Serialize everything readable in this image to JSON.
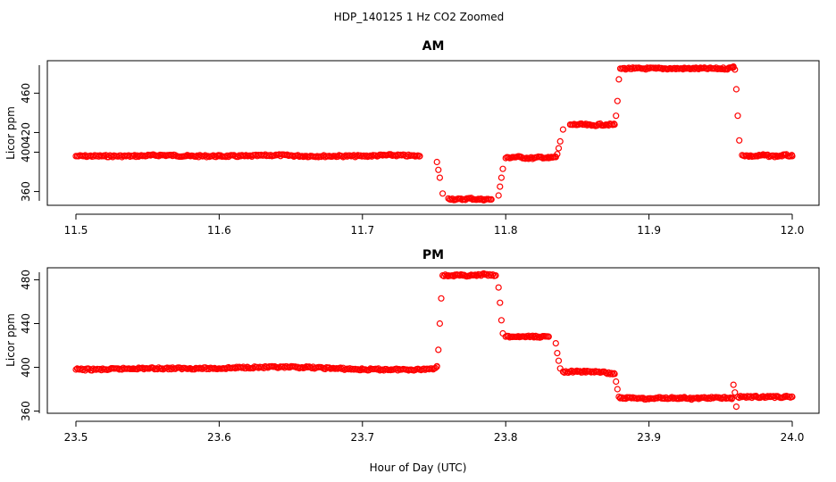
{
  "title": "HDP_140125  1 Hz CO2 Zoomed",
  "xlabel": "Hour of Day (UTC)",
  "colors": {
    "points": "#ff0000",
    "axes": "#000000",
    "background": "#ffffff"
  },
  "chart_data": [
    {
      "type": "scatter",
      "title": "AM",
      "ylabel": "Licor ppm",
      "xlim": [
        11.5,
        12.0
      ],
      "ylim": [
        346,
        493
      ],
      "xticks": [
        "11.5",
        "11.6",
        "11.7",
        "11.8",
        "11.9",
        "12.0"
      ],
      "yticks": [
        "360",
        "400",
        "420",
        "460"
      ],
      "grid": false,
      "legend": "none",
      "series": [
        {
          "x": [
            11.5,
            11.52,
            11.54,
            11.56,
            11.58,
            11.6,
            11.62,
            11.64,
            11.66,
            11.68,
            11.7,
            11.72,
            11.74,
            11.752,
            11.753,
            11.754,
            11.756,
            11.76,
            11.765,
            11.77,
            11.775,
            11.78,
            11.785,
            11.79,
            11.795,
            11.796,
            11.797,
            11.798,
            11.8,
            11.805,
            11.81,
            11.815,
            11.82,
            11.825,
            11.83,
            11.835,
            11.836,
            11.837,
            11.838,
            11.84,
            11.845,
            11.85,
            11.855,
            11.86,
            11.865,
            11.87,
            11.876,
            11.877,
            11.878,
            11.879,
            11.88,
            11.885,
            11.89,
            11.895,
            11.9,
            11.905,
            11.91,
            11.915,
            11.92,
            11.925,
            11.93,
            11.935,
            11.94,
            11.945,
            11.95,
            11.955,
            11.958,
            11.959,
            11.96,
            11.961,
            11.962,
            11.963,
            11.965,
            11.97,
            11.975,
            11.98,
            11.985,
            11.99,
            11.995,
            12.0
          ],
          "y": [
            396,
            396,
            396,
            397,
            396,
            396,
            396,
            397,
            396,
            396,
            396,
            397,
            396,
            390,
            382,
            374,
            358,
            353,
            352,
            352,
            353,
            352,
            352,
            352,
            356,
            365,
            374,
            383,
            394,
            395,
            395,
            394,
            394,
            395,
            394,
            395,
            398,
            404,
            411,
            423,
            428,
            428,
            428,
            427,
            428,
            428,
            428,
            437,
            452,
            474,
            485,
            485,
            485,
            485,
            485,
            485,
            485,
            485,
            485,
            485,
            485,
            485,
            485,
            485,
            485,
            485,
            486,
            487,
            484,
            464,
            437,
            412,
            397,
            396,
            396,
            397,
            396,
            396,
            397,
            396
          ]
        }
      ]
    },
    {
      "type": "scatter",
      "title": "PM",
      "ylabel": "Licor ppm",
      "xlim": [
        23.5,
        24.0
      ],
      "ylim": [
        358,
        491
      ],
      "xticks": [
        "23.5",
        "23.6",
        "23.7",
        "23.8",
        "23.9",
        "24.0"
      ],
      "yticks": [
        "360",
        "400",
        "440",
        "480"
      ],
      "grid": false,
      "legend": "none",
      "series": [
        {
          "x": [
            23.5,
            23.52,
            23.54,
            23.56,
            23.58,
            23.6,
            23.62,
            23.64,
            23.66,
            23.68,
            23.7,
            23.72,
            23.74,
            23.75,
            23.752,
            23.753,
            23.754,
            23.755,
            23.756,
            23.76,
            23.765,
            23.77,
            23.775,
            23.78,
            23.785,
            23.79,
            23.793,
            23.795,
            23.796,
            23.797,
            23.798,
            23.8,
            23.805,
            23.81,
            23.815,
            23.82,
            23.825,
            23.83,
            23.835,
            23.836,
            23.837,
            23.838,
            23.84,
            23.845,
            23.85,
            23.855,
            23.86,
            23.865,
            23.87,
            23.876,
            23.877,
            23.878,
            23.879,
            23.88,
            23.885,
            23.89,
            23.895,
            23.9,
            23.905,
            23.91,
            23.915,
            23.92,
            23.925,
            23.93,
            23.935,
            23.94,
            23.945,
            23.95,
            23.955,
            23.958,
            23.959,
            23.96,
            23.961,
            23.962,
            23.965,
            23.97,
            23.975,
            23.98,
            23.985,
            23.99,
            23.995,
            24.0
          ],
          "y": [
            398,
            398,
            399,
            399,
            399,
            399,
            400,
            400,
            400,
            399,
            398,
            398,
            398,
            399,
            401,
            416,
            440,
            463,
            484,
            484,
            484,
            484,
            484,
            484,
            485,
            484,
            484,
            473,
            459,
            443,
            431,
            428,
            428,
            428,
            428,
            428,
            428,
            428,
            422,
            413,
            406,
            399,
            396,
            396,
            396,
            396,
            396,
            396,
            395,
            394,
            387,
            380,
            373,
            372,
            372,
            372,
            372,
            371,
            372,
            372,
            372,
            372,
            372,
            371,
            372,
            372,
            372,
            372,
            372,
            372,
            384,
            377,
            364,
            373,
            373,
            373,
            373,
            373,
            373,
            373,
            373,
            373
          ]
        }
      ]
    }
  ]
}
